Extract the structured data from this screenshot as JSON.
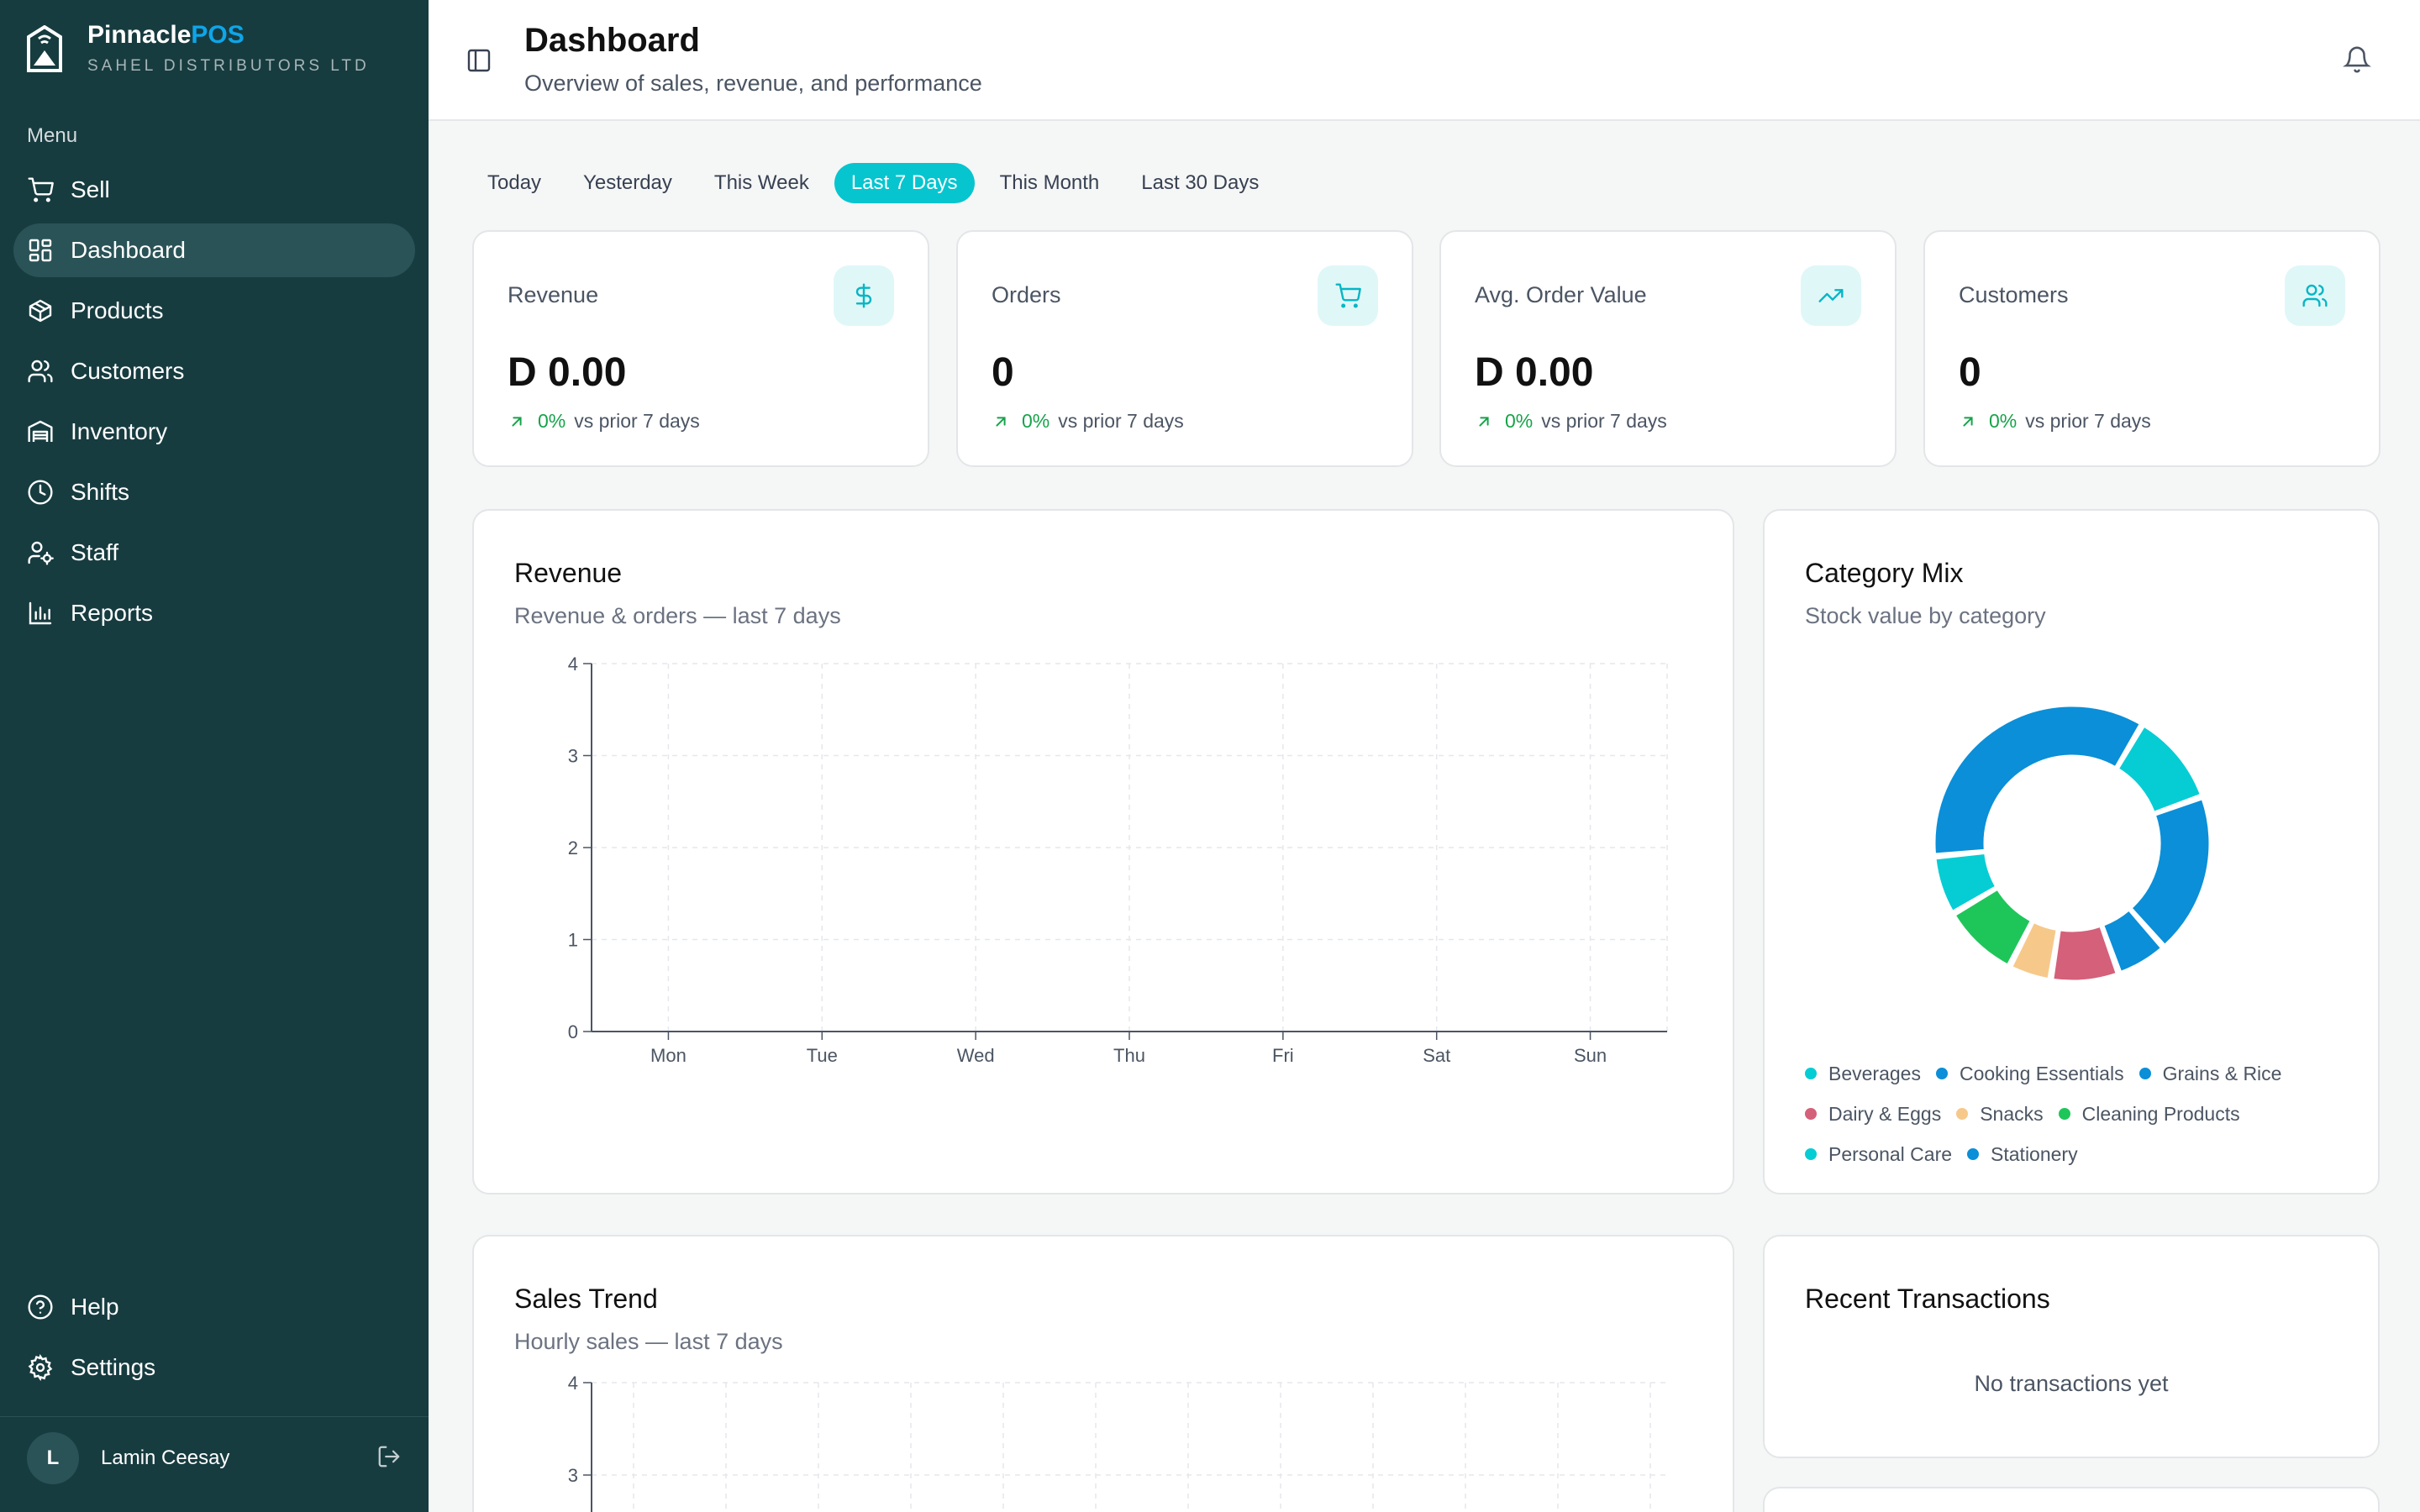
{
  "brand": {
    "name_main": "Pinnacle",
    "name_accent": "POS",
    "company": "SAHEL DISTRIBUTORS LTD"
  },
  "sidebar": {
    "menu_label": "Menu",
    "items": [
      {
        "label": "Sell",
        "icon": "cart-icon"
      },
      {
        "label": "Dashboard",
        "icon": "dashboard-icon",
        "active": true
      },
      {
        "label": "Products",
        "icon": "package-icon"
      },
      {
        "label": "Customers",
        "icon": "users-icon"
      },
      {
        "label": "Inventory",
        "icon": "warehouse-icon"
      },
      {
        "label": "Shifts",
        "icon": "clock-icon"
      },
      {
        "label": "Staff",
        "icon": "user-cog-icon"
      },
      {
        "label": "Reports",
        "icon": "bar-chart-icon"
      }
    ],
    "bottom_items": [
      {
        "label": "Help",
        "icon": "help-icon"
      },
      {
        "label": "Settings",
        "icon": "gear-icon"
      }
    ],
    "user": {
      "initial": "L",
      "name": "Lamin Ceesay"
    }
  },
  "header": {
    "title": "Dashboard",
    "subtitle": "Overview of sales, revenue, and performance"
  },
  "filters": [
    "Today",
    "Yesterday",
    "This Week",
    "Last 7 Days",
    "This Month",
    "Last 30 Days"
  ],
  "active_filter": "Last 7 Days",
  "kpis": [
    {
      "label": "Revenue",
      "value": "D 0.00",
      "change": "0%",
      "change_text": "vs prior 7 days",
      "icon": "dollar-icon"
    },
    {
      "label": "Orders",
      "value": "0",
      "change": "0%",
      "change_text": "vs prior 7 days",
      "icon": "cart-icon"
    },
    {
      "label": "Avg. Order Value",
      "value": "D 0.00",
      "change": "0%",
      "change_text": "vs prior 7 days",
      "icon": "trending-up-icon"
    },
    {
      "label": "Customers",
      "value": "0",
      "change": "0%",
      "change_text": "vs prior 7 days",
      "icon": "users-icon"
    }
  ],
  "revenue_card": {
    "title": "Revenue",
    "subtitle": "Revenue & orders — last 7 days"
  },
  "category_card": {
    "title": "Category Mix",
    "subtitle": "Stock value by category"
  },
  "sales_trend_card": {
    "title": "Sales Trend",
    "subtitle": "Hourly sales — last 7 days"
  },
  "recent_tx_card": {
    "title": "Recent Transactions",
    "empty": "No transactions yet"
  },
  "colors": {
    "accent": "#06c5cf",
    "sidebar": "#173c40",
    "positive": "#16a34a"
  },
  "chart_data": [
    {
      "type": "line",
      "categories": [
        "Mon",
        "Tue",
        "Wed",
        "Thu",
        "Fri",
        "Sat",
        "Sun"
      ],
      "series": [],
      "yticks": [
        "0",
        "1",
        "2",
        "3",
        "4"
      ],
      "ylim": [
        0,
        4
      ],
      "grid": true
    },
    {
      "type": "pie",
      "labels": [
        "Beverages",
        "Cooking Essentials",
        "Grains & Rice",
        "Dairy & Eggs",
        "Snacks",
        "Cleaning Products",
        "Personal Care",
        "Stationery"
      ],
      "values": [
        11,
        19,
        6,
        8,
        5,
        9,
        7,
        35
      ],
      "colors": [
        "#06cdd4",
        "#0a8fd8",
        "#0a8fd8",
        "#d4607a",
        "#f6c98a",
        "#1ec65a",
        "#06cdd4",
        "#0a8fd8"
      ],
      "legend": "bottom"
    },
    {
      "type": "line",
      "series": [],
      "yticks": [
        "4",
        "3"
      ],
      "ylim": [
        0,
        4
      ],
      "grid": true
    }
  ]
}
